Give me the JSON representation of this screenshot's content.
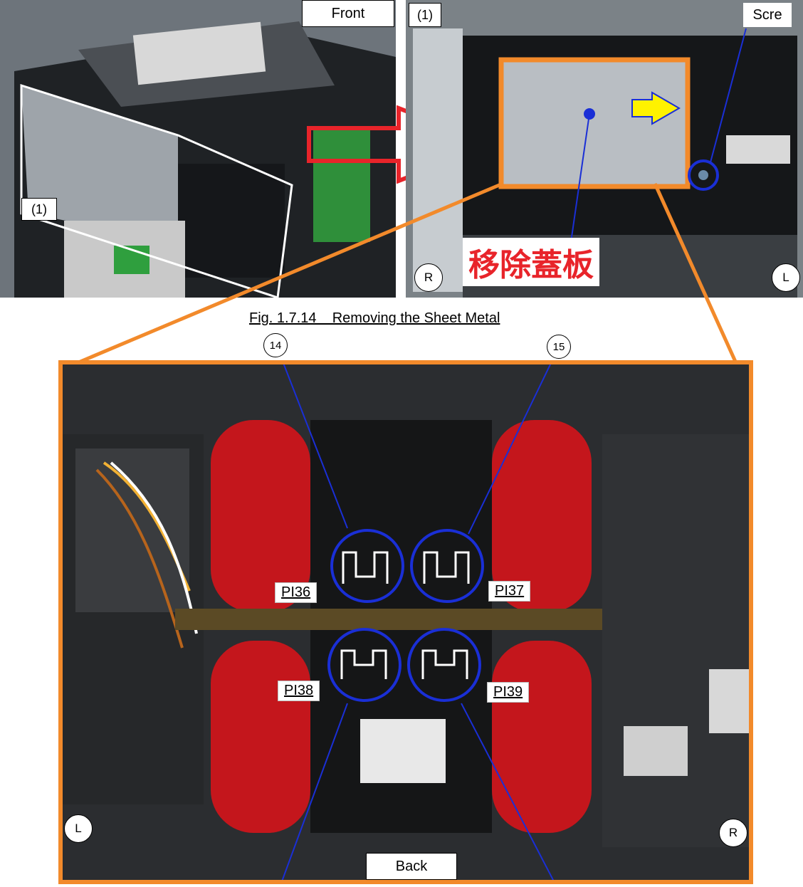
{
  "caption": "Fig. 1.7.14    Removing the Sheet Metal",
  "top_left": {
    "front_label": "Front",
    "callout": "(1)"
  },
  "top_right": {
    "callout": "(1)",
    "screw_label": "Scre",
    "remove_cover": "移除蓋板",
    "side_r": "R",
    "side_l": "L"
  },
  "main": {
    "callouts": {
      "n14": "14",
      "n15": "15"
    },
    "sensors": {
      "pi36": "PI36",
      "pi37": "PI37",
      "pi38": "PI38",
      "pi39": "PI39"
    },
    "back_label": "Back",
    "side_l": "L",
    "side_r": "R"
  },
  "colors": {
    "orange": "#f28a2b",
    "blue": "#1a2fd6",
    "red": "#e8242a",
    "yellow": "#fff200"
  }
}
